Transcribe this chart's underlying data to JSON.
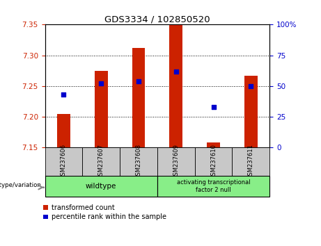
{
  "title": "GDS3334 / 102850520",
  "samples": [
    "GSM237606",
    "GSM237607",
    "GSM237608",
    "GSM237609",
    "GSM237610",
    "GSM237611"
  ],
  "bar_bottom": 7.15,
  "bar_tops": [
    7.205,
    7.275,
    7.312,
    7.35,
    7.158,
    7.267
  ],
  "percentile_values": [
    43,
    52,
    54,
    62,
    33,
    50
  ],
  "left_ylim": [
    7.15,
    7.35
  ],
  "right_ylim": [
    0,
    100
  ],
  "left_yticks": [
    7.15,
    7.2,
    7.25,
    7.3,
    7.35
  ],
  "right_yticks": [
    0,
    25,
    50,
    75,
    100
  ],
  "bar_color": "#cc2200",
  "dot_color": "#0000cc",
  "wildtype_color": "#88ee88",
  "null_color": "#88ee88",
  "wildtype_label": "wildtype",
  "null_label": "activating transcriptional\nfactor 2 null",
  "legend_red_label": "transformed count",
  "legend_blue_label": "percentile rank within the sample",
  "genotype_label": "genotype/variation"
}
